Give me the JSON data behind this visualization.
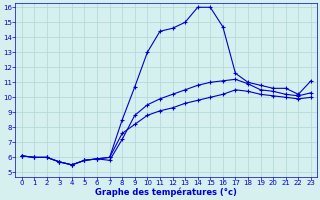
{
  "xlabel": "Graphe des températures (°c)",
  "bg_color": "#d6f0f0",
  "grid_color": "#b8dada",
  "line_color": "#0000cc",
  "xlim": [
    -0.5,
    23.5
  ],
  "ylim": [
    4.7,
    16.3
  ],
  "yticks": [
    5,
    6,
    7,
    8,
    9,
    10,
    11,
    12,
    13,
    14,
    15,
    16
  ],
  "xticks": [
    0,
    1,
    2,
    3,
    4,
    5,
    6,
    7,
    8,
    9,
    10,
    11,
    12,
    13,
    14,
    15,
    16,
    17,
    18,
    19,
    20,
    21,
    22,
    23
  ],
  "curve1_x": [
    0,
    1,
    2,
    3,
    4,
    5,
    6,
    7,
    8,
    9,
    10,
    11,
    12,
    13,
    14,
    15,
    16,
    17,
    18,
    19,
    20,
    21,
    22,
    23
  ],
  "curve1_y": [
    6.1,
    6.0,
    6.0,
    5.7,
    5.5,
    5.8,
    5.9,
    6.0,
    8.5,
    10.7,
    13.0,
    14.4,
    14.6,
    15.0,
    16.0,
    16.0,
    14.7,
    11.6,
    11.0,
    10.8,
    10.6,
    10.6,
    10.2,
    11.1
  ],
  "curve2_x": [
    0,
    1,
    2,
    3,
    4,
    5,
    6,
    7,
    8,
    9,
    10,
    11,
    12,
    13,
    14,
    15,
    16,
    17,
    18,
    19,
    20,
    21,
    22,
    23
  ],
  "curve2_y": [
    6.1,
    6.0,
    6.0,
    5.7,
    5.5,
    5.8,
    5.9,
    5.8,
    7.2,
    8.8,
    9.5,
    9.9,
    10.2,
    10.5,
    10.8,
    11.0,
    11.1,
    11.2,
    10.9,
    10.5,
    10.4,
    10.2,
    10.1,
    10.3
  ],
  "curve3_x": [
    0,
    1,
    2,
    3,
    4,
    5,
    6,
    7,
    8,
    9,
    10,
    11,
    12,
    13,
    14,
    15,
    16,
    17,
    18,
    19,
    20,
    21,
    22,
    23
  ],
  "curve3_y": [
    6.1,
    6.0,
    6.0,
    5.7,
    5.5,
    5.8,
    5.9,
    6.0,
    7.6,
    8.2,
    8.8,
    9.1,
    9.3,
    9.6,
    9.8,
    10.0,
    10.2,
    10.5,
    10.4,
    10.2,
    10.1,
    10.0,
    9.9,
    10.0
  ],
  "tick_fontsize": 5.0,
  "xlabel_fontsize": 6.0
}
